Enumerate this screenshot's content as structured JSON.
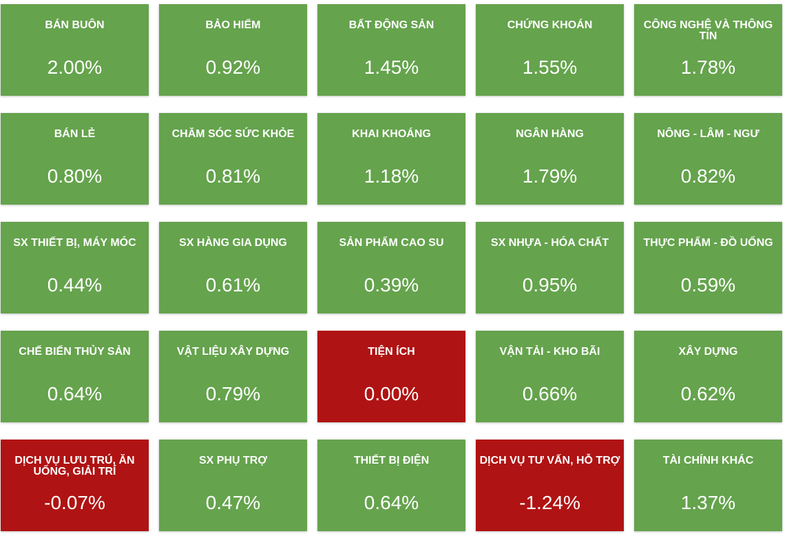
{
  "colors": {
    "up": "#65a34d",
    "down": "#b01313"
  },
  "sectors": [
    {
      "name": "BÁN BUÔN",
      "value": "2.00%",
      "trend": "up"
    },
    {
      "name": "BẢO HIỂM",
      "value": "0.92%",
      "trend": "up"
    },
    {
      "name": "BẤT ĐỘNG SẢN",
      "value": "1.45%",
      "trend": "up"
    },
    {
      "name": "CHỨNG KHOÁN",
      "value": "1.55%",
      "trend": "up"
    },
    {
      "name": "CÔNG NGHỆ VÀ THÔNG TIN",
      "value": "1.78%",
      "trend": "up"
    },
    {
      "name": "BÁN LẺ",
      "value": "0.80%",
      "trend": "up"
    },
    {
      "name": "CHĂM SÓC SỨC KHỎE",
      "value": "0.81%",
      "trend": "up"
    },
    {
      "name": "KHAI KHOÁNG",
      "value": "1.18%",
      "trend": "up"
    },
    {
      "name": "NGÂN HÀNG",
      "value": "1.79%",
      "trend": "up"
    },
    {
      "name": "NÔNG - LÂM - NGƯ",
      "value": "0.82%",
      "trend": "up"
    },
    {
      "name": "SX THIẾT BỊ, MÁY MÓC",
      "value": "0.44%",
      "trend": "up"
    },
    {
      "name": "SX HÀNG GIA DỤNG",
      "value": "0.61%",
      "trend": "up"
    },
    {
      "name": "SẢN PHẨM CAO SU",
      "value": "0.39%",
      "trend": "up"
    },
    {
      "name": "SX NHỰA - HÓA CHẤT",
      "value": "0.95%",
      "trend": "up"
    },
    {
      "name": "THỰC PHẨM - ĐỒ UỐNG",
      "value": "0.59%",
      "trend": "up"
    },
    {
      "name": "CHẾ BIẾN THỦY SẢN",
      "value": "0.64%",
      "trend": "up"
    },
    {
      "name": "VẬT LIỆU XÂY DỰNG",
      "value": "0.79%",
      "trend": "up"
    },
    {
      "name": "TIỆN ÍCH",
      "value": "0.00%",
      "trend": "down"
    },
    {
      "name": "VẬN TẢI - KHO BÃI",
      "value": "0.66%",
      "trend": "up"
    },
    {
      "name": "XÂY DỰNG",
      "value": "0.62%",
      "trend": "up"
    },
    {
      "name": "DỊCH VỤ LƯU TRÚ, ĂN UỐNG, GIẢI TRÍ",
      "value": "-0.07%",
      "trend": "down"
    },
    {
      "name": "SX PHỤ TRỢ",
      "value": "0.47%",
      "trend": "up"
    },
    {
      "name": "THIẾT BỊ ĐIỆN",
      "value": "0.64%",
      "trend": "up"
    },
    {
      "name": "DỊCH VỤ TƯ VẤN, HỖ TRỢ",
      "value": "-1.24%",
      "trend": "down"
    },
    {
      "name": "TÀI CHÍNH KHÁC",
      "value": "1.37%",
      "trend": "up"
    }
  ]
}
